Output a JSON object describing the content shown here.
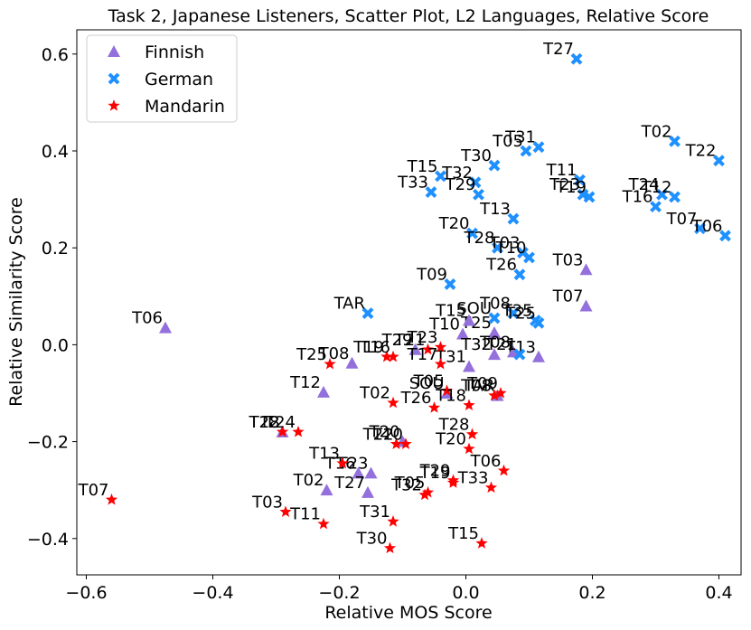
{
  "chart_data": {
    "type": "scatter",
    "title": "Task 2, Japanese Listeners, Scatter Plot, L2 Languages, Relative Score",
    "xlabel": "Relative MOS Score",
    "ylabel": "Relative Similarity Score",
    "xlim": [
      -0.615,
      0.435
    ],
    "ylim": [
      -0.475,
      0.65
    ],
    "xticks": [
      -0.6,
      -0.4,
      -0.2,
      0.0,
      0.2,
      0.4
    ],
    "xtick_labels": [
      "−0.6",
      "−0.4",
      "−0.2",
      "0.0",
      "0.2",
      "0.4"
    ],
    "yticks": [
      -0.4,
      -0.2,
      0.0,
      0.2,
      0.4,
      0.6
    ],
    "ytick_labels": [
      "−0.4",
      "−0.2",
      "0.0",
      "0.2",
      "0.4",
      "0.6"
    ],
    "legend_position": "top-left",
    "series": [
      {
        "name": "Finnish",
        "marker": "triangle",
        "color": "#9370DB",
        "points": [
          {
            "x": -0.475,
            "y": 0.035,
            "label": "T06"
          },
          {
            "x": 0.19,
            "y": 0.155,
            "label": "T03"
          },
          {
            "x": 0.19,
            "y": 0.08,
            "label": "T07"
          },
          {
            "x": -0.18,
            "y": -0.038,
            "label": "T08"
          },
          {
            "x": -0.225,
            "y": -0.098,
            "label": "T12"
          },
          {
            "x": -0.005,
            "y": 0.022,
            "label": "T10"
          },
          {
            "x": 0.045,
            "y": 0.025,
            "label": "T25"
          },
          {
            "x": 0.115,
            "y": -0.025,
            "label": "T13"
          },
          {
            "x": 0.075,
            "y": -0.015,
            "label": "T08"
          },
          {
            "x": 0.045,
            "y": -0.02,
            "label": "T32"
          },
          {
            "x": 0.005,
            "y": -0.045,
            "label": "T31"
          },
          {
            "x": 0.05,
            "y": -0.105,
            "label": "TAR"
          },
          {
            "x": -0.03,
            "y": -0.1,
            "label": "SOU"
          },
          {
            "x": -0.1,
            "y": -0.2,
            "label": "T20"
          },
          {
            "x": -0.29,
            "y": -0.18,
            "label": "T28"
          },
          {
            "x": -0.15,
            "y": -0.265,
            "label": "T23"
          },
          {
            "x": -0.17,
            "y": -0.265,
            "label": "T16"
          },
          {
            "x": -0.22,
            "y": -0.3,
            "label": "T02"
          },
          {
            "x": -0.155,
            "y": -0.305,
            "label": "T27"
          },
          {
            "x": -0.08,
            "y": -0.01,
            "label": "T29"
          },
          {
            "x": 0.005,
            "y": 0.05,
            "label": "T15"
          }
        ]
      },
      {
        "name": "German",
        "marker": "x",
        "color": "#1E90FF",
        "points": [
          {
            "x": 0.175,
            "y": 0.59,
            "label": "T27"
          },
          {
            "x": 0.33,
            "y": 0.42,
            "label": "T02"
          },
          {
            "x": 0.4,
            "y": 0.38,
            "label": "T22"
          },
          {
            "x": 0.115,
            "y": 0.408,
            "label": "T31"
          },
          {
            "x": 0.095,
            "y": 0.4,
            "label": "T05"
          },
          {
            "x": 0.045,
            "y": 0.37,
            "label": "T30"
          },
          {
            "x": -0.04,
            "y": 0.348,
            "label": "T15"
          },
          {
            "x": 0.015,
            "y": 0.335,
            "label": "T32"
          },
          {
            "x": -0.055,
            "y": 0.315,
            "label": "T33"
          },
          {
            "x": 0.02,
            "y": 0.31,
            "label": "T29"
          },
          {
            "x": 0.18,
            "y": 0.34,
            "label": "T11"
          },
          {
            "x": 0.185,
            "y": 0.31,
            "label": "T23"
          },
          {
            "x": 0.195,
            "y": 0.305,
            "label": "T19"
          },
          {
            "x": 0.31,
            "y": 0.31,
            "label": "T24"
          },
          {
            "x": 0.33,
            "y": 0.305,
            "label": "T12"
          },
          {
            "x": 0.3,
            "y": 0.285,
            "label": "T16"
          },
          {
            "x": 0.37,
            "y": 0.24,
            "label": "T07"
          },
          {
            "x": 0.41,
            "y": 0.225,
            "label": "T06"
          },
          {
            "x": 0.075,
            "y": 0.26,
            "label": "T13"
          },
          {
            "x": 0.01,
            "y": 0.23,
            "label": "T20"
          },
          {
            "x": 0.05,
            "y": 0.2,
            "label": "T28"
          },
          {
            "x": 0.09,
            "y": 0.19,
            "label": "T03"
          },
          {
            "x": 0.1,
            "y": 0.18,
            "label": "T10"
          },
          {
            "x": 0.085,
            "y": 0.145,
            "label": "T26"
          },
          {
            "x": -0.025,
            "y": 0.125,
            "label": "T09"
          },
          {
            "x": -0.155,
            "y": 0.065,
            "label": "TAR"
          },
          {
            "x": 0.045,
            "y": 0.055,
            "label": "SOU"
          },
          {
            "x": 0.075,
            "y": 0.065,
            "label": "T08"
          },
          {
            "x": 0.11,
            "y": 0.05,
            "label": "T35"
          },
          {
            "x": 0.115,
            "y": 0.045,
            "label": "T25"
          },
          {
            "x": 0.085,
            "y": -0.02,
            "label": "T21"
          }
        ]
      },
      {
        "name": "Mandarin",
        "marker": "star",
        "color": "#FF0000",
        "points": [
          {
            "x": -0.56,
            "y": -0.32,
            "label": "T07"
          },
          {
            "x": -0.215,
            "y": -0.04,
            "label": "T25"
          },
          {
            "x": -0.125,
            "y": -0.025,
            "label": "T19"
          },
          {
            "x": -0.115,
            "y": -0.025,
            "label": "T16"
          },
          {
            "x": -0.06,
            "y": -0.01,
            "label": "T21"
          },
          {
            "x": -0.04,
            "y": -0.04,
            "label": "T17"
          },
          {
            "x": -0.04,
            "y": -0.005,
            "label": "T23"
          },
          {
            "x": -0.115,
            "y": -0.12,
            "label": "T02"
          },
          {
            "x": -0.05,
            "y": -0.13,
            "label": "T26"
          },
          {
            "x": -0.03,
            "y": -0.095,
            "label": "T05"
          },
          {
            "x": 0.005,
            "y": -0.125,
            "label": "T18"
          },
          {
            "x": 0.055,
            "y": -0.1,
            "label": "T09"
          },
          {
            "x": 0.045,
            "y": -0.105,
            "label": "T08"
          },
          {
            "x": -0.29,
            "y": -0.18,
            "label": "T12"
          },
          {
            "x": -0.265,
            "y": -0.18,
            "label": "T24"
          },
          {
            "x": -0.11,
            "y": -0.205,
            "label": "T22"
          },
          {
            "x": -0.095,
            "y": -0.205,
            "label": "T10"
          },
          {
            "x": 0.01,
            "y": -0.185,
            "label": "T28"
          },
          {
            "x": 0.005,
            "y": -0.215,
            "label": "T20"
          },
          {
            "x": -0.195,
            "y": -0.245,
            "label": "T13"
          },
          {
            "x": 0.06,
            "y": -0.26,
            "label": "T06"
          },
          {
            "x": -0.02,
            "y": -0.285,
            "label": "T19"
          },
          {
            "x": -0.02,
            "y": -0.28,
            "label": "T29"
          },
          {
            "x": -0.06,
            "y": -0.305,
            "label": "T05"
          },
          {
            "x": -0.065,
            "y": -0.31,
            "label": "T32"
          },
          {
            "x": 0.04,
            "y": -0.295,
            "label": "T33"
          },
          {
            "x": -0.285,
            "y": -0.345,
            "label": "T03"
          },
          {
            "x": -0.225,
            "y": -0.37,
            "label": "T11"
          },
          {
            "x": -0.115,
            "y": -0.365,
            "label": "T31"
          },
          {
            "x": -0.12,
            "y": -0.42,
            "label": "T30"
          },
          {
            "x": 0.025,
            "y": -0.41,
            "label": "T15"
          }
        ]
      }
    ]
  }
}
